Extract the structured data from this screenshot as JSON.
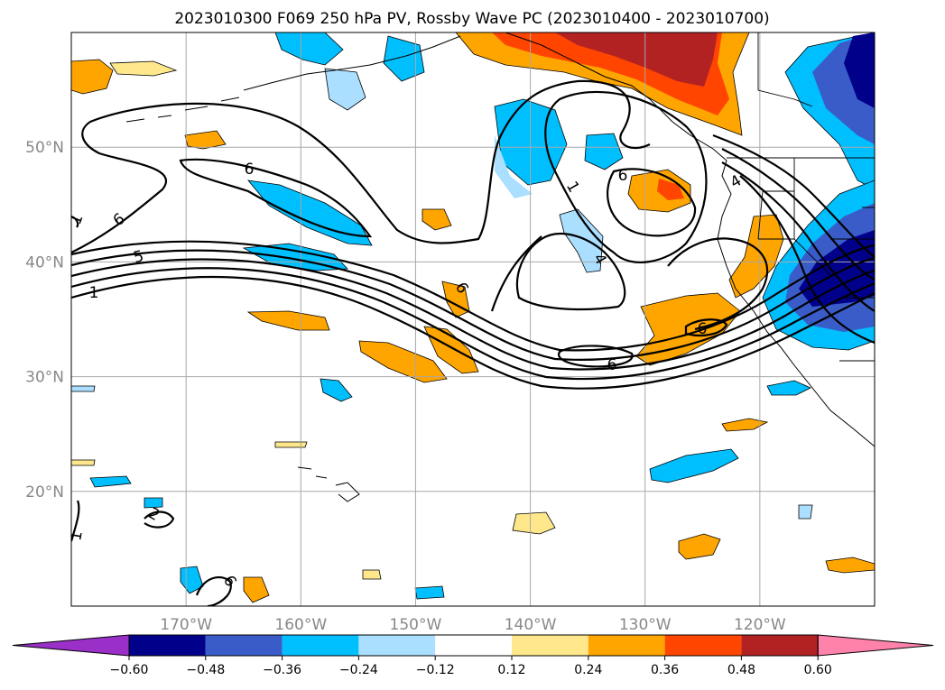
{
  "title": "2023010300 F069 250 hPa PV, Rossby Wave PC (2023010400 - 2023010700)",
  "map": {
    "lon_range": [
      -180,
      -110
    ],
    "lat_range": [
      10,
      60
    ],
    "lat_ticks": [
      {
        "lat": 50,
        "label": "50°N"
      },
      {
        "lat": 40,
        "label": "40°N"
      },
      {
        "lat": 30,
        "label": "30°N"
      },
      {
        "lat": 20,
        "label": "20°N"
      }
    ],
    "lon_ticks": [
      {
        "lon": -170,
        "label": "170°W"
      },
      {
        "lon": -160,
        "label": "160°W"
      },
      {
        "lon": -150,
        "label": "150°W"
      },
      {
        "lon": -140,
        "label": "140°W"
      },
      {
        "lon": -130,
        "label": "130°W"
      },
      {
        "lon": -120,
        "label": "120°W"
      }
    ],
    "contour_labels": [
      "1",
      "5",
      "6",
      "6",
      "6",
      "6",
      "6",
      "6",
      "4",
      "1",
      "1",
      "1",
      "2",
      "6",
      "4"
    ]
  },
  "colorbar": {
    "colors": [
      "#9a30c8",
      "#00008b",
      "#3a5cc8",
      "#00bfff",
      "#aadfff",
      "#ffffff",
      "#ffe88c",
      "#ffa500",
      "#ff4500",
      "#b22222",
      "#ff82ab"
    ],
    "labels": [
      "−0.60",
      "−0.48",
      "−0.36",
      "−0.24",
      "−0.12",
      "0.12",
      "0.24",
      "0.36",
      "0.48",
      "0.60"
    ]
  }
}
